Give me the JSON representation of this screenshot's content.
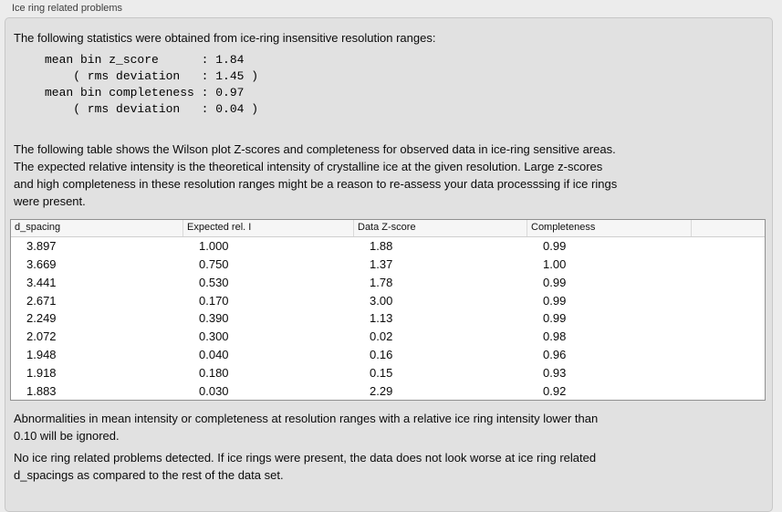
{
  "panel": {
    "title": "Ice ring related problems"
  },
  "stats": {
    "intro": "The following statistics were obtained from ice-ring insensitive resolution ranges:",
    "block": "mean bin z_score      : 1.84\n    ( rms deviation   : 1.45 )\nmean bin completeness : 0.97\n    ( rms deviation   : 0.04 )"
  },
  "table_intro": "The following table shows the Wilson plot Z-scores and completeness for observed data in ice-ring sensitive areas.\nThe expected relative intensity is the theoretical intensity of crystalline ice at the given resolution. Large z-scores\nand high completeness in these resolution ranges might be a reason to re-assess your data processsing if ice rings\nwere present.",
  "table": {
    "columns": [
      "d_spacing",
      "Expected rel. I",
      "Data Z-score",
      "Completeness",
      ""
    ],
    "rows": [
      [
        "3.897",
        "1.000",
        "1.88",
        "0.99"
      ],
      [
        "3.669",
        "0.750",
        "1.37",
        "1.00"
      ],
      [
        "3.441",
        "0.530",
        "1.78",
        "0.99"
      ],
      [
        "2.671",
        "0.170",
        "3.00",
        "0.99"
      ],
      [
        "2.249",
        "0.390",
        "1.13",
        "0.99"
      ],
      [
        "2.072",
        "0.300",
        "0.02",
        "0.98"
      ],
      [
        "1.948",
        "0.040",
        "0.16",
        "0.96"
      ],
      [
        "1.918",
        "0.180",
        "0.15",
        "0.93"
      ],
      [
        "1.883",
        "0.030",
        "2.29",
        "0.92"
      ]
    ]
  },
  "notes": {
    "ignore_note": "Abnormalities in mean intensity or completeness at resolution ranges with a relative ice ring intensity lower than\n0.10 will be ignored.",
    "conclusion": "No ice ring related problems detected. If ice rings were present, the data does not look worse at ice ring related\nd_spacings as compared to the rest of the data set."
  },
  "colors": {
    "outer_background": "#ececec",
    "groupbox_background": "#e1e1e1",
    "groupbox_border": "#c7c7c7",
    "table_border": "#909090",
    "table_header_background": "#f6f6f6",
    "text": "#0a0a0a"
  }
}
